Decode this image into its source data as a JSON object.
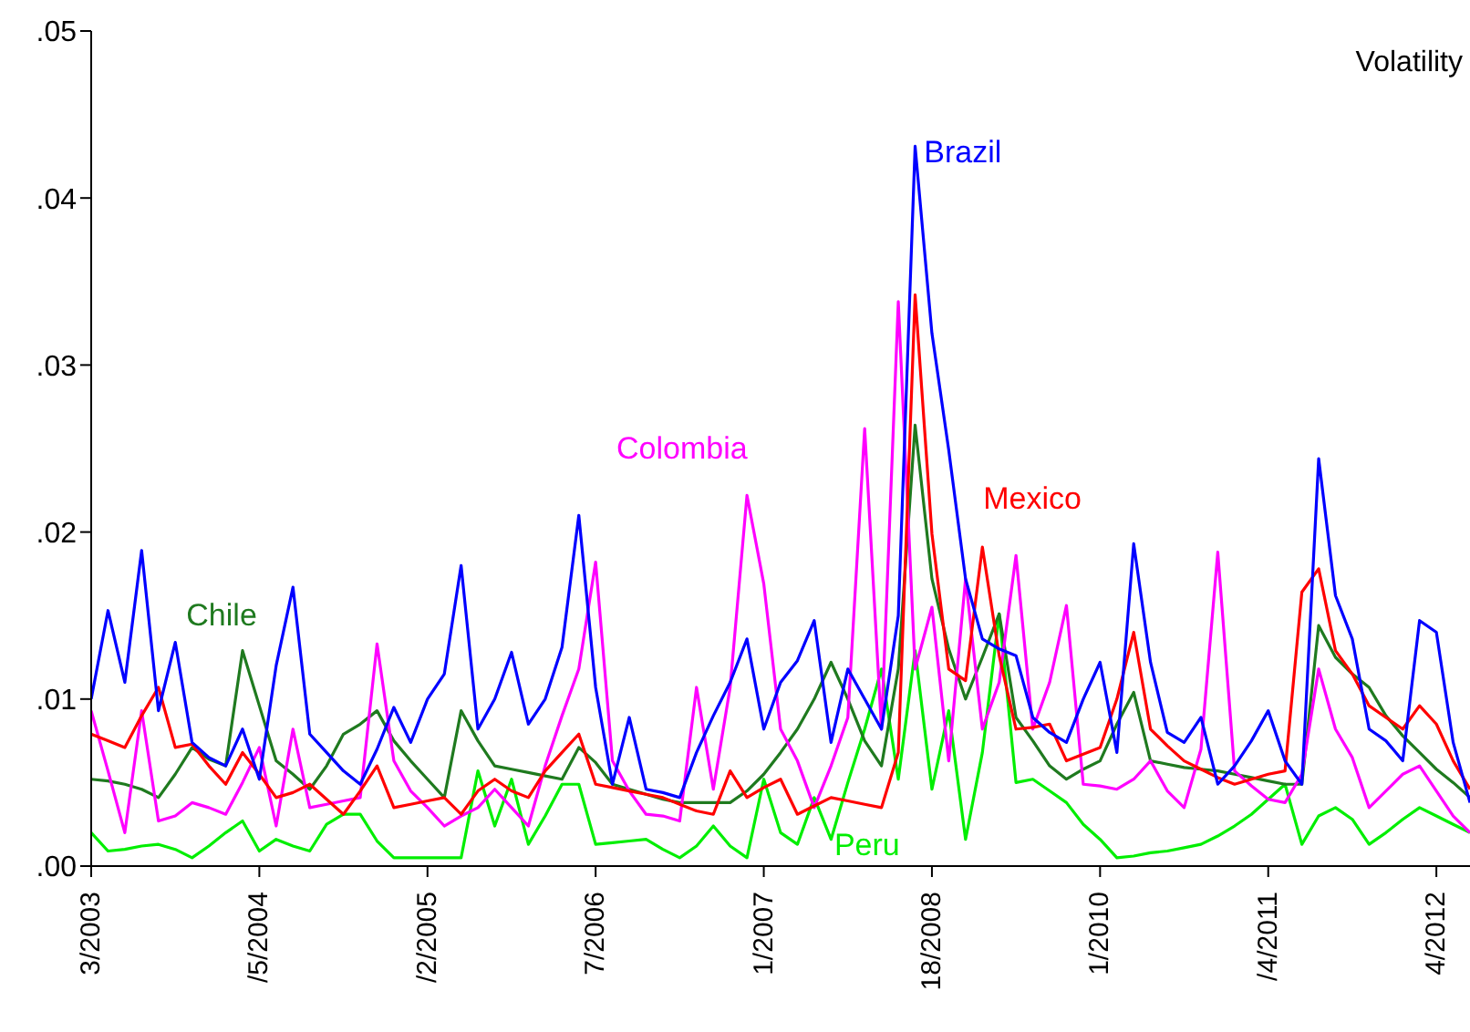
{
  "chart_data": {
    "type": "line",
    "annotations": [
      "Volatility"
    ],
    "categories": [
      "3/2003",
      null,
      null,
      null,
      null,
      null,
      null,
      null,
      null,
      null,
      "/5/2004",
      null,
      null,
      null,
      null,
      null,
      null,
      null,
      null,
      null,
      "/2/2005",
      null,
      null,
      null,
      null,
      null,
      null,
      null,
      null,
      null,
      "7/2006",
      null,
      null,
      null,
      null,
      null,
      null,
      null,
      null,
      null,
      "1/2007",
      null,
      null,
      null,
      null,
      null,
      null,
      null,
      null,
      null,
      "18/2008",
      null,
      null,
      null,
      null,
      null,
      null,
      null,
      null,
      null,
      "1/2010",
      null,
      null,
      null,
      null,
      null,
      null,
      null,
      null,
      null,
      "/4/2011",
      null,
      null,
      null,
      null,
      null,
      null,
      null,
      null,
      null,
      "4/2012",
      null,
      null
    ],
    "ylim": [
      0,
      0.05
    ],
    "yticks": [
      {
        "value": 0,
        "label": ".00"
      },
      {
        "value": 0.01,
        "label": ".01"
      },
      {
        "value": 0.02,
        "label": ".02"
      },
      {
        "value": 0.03,
        "label": ".03"
      },
      {
        "value": 0.04,
        "label": ".04"
      },
      {
        "value": 0.05,
        "label": ".05"
      }
    ],
    "grid": false,
    "legend": false,
    "marker": "none",
    "line_style": "solid",
    "series": [
      {
        "name": "Peru",
        "color": "#00ee00",
        "values": [
          0.002,
          0.0009,
          0.001,
          0.0012,
          0.0013,
          0.001,
          0.0005,
          0.0012,
          0.002,
          0.0027,
          0.0009,
          0.0016,
          0.0012,
          0.0009,
          0.0025,
          0.0031,
          0.0031,
          0.0015,
          0.0005,
          0.0005,
          0.0005,
          0.0005,
          0.0005,
          0.0057,
          0.0024,
          0.0052,
          0.0013,
          0.003,
          0.0049,
          0.0049,
          0.0013,
          0.0014,
          0.0015,
          0.0016,
          0.001,
          0.0005,
          0.0012,
          0.0024,
          0.0012,
          0.0005,
          0.0052,
          0.002,
          0.0013,
          0.0041,
          0.0016,
          0.005,
          0.0082,
          0.0118,
          0.0052,
          0.0129,
          0.0046,
          0.0093,
          0.0016,
          0.0068,
          0.0151,
          0.005,
          0.0052,
          0.0045,
          0.0038,
          0.0025,
          0.0016,
          0.0005,
          0.0006,
          0.0008,
          0.0009,
          0.0011,
          0.0013,
          0.0018,
          0.0024,
          0.0031,
          0.004,
          0.0049,
          0.0013,
          0.003,
          0.0035,
          0.0028,
          0.0013,
          0.002,
          0.0028,
          0.0035,
          0.003,
          0.0025,
          0.002
        ]
      },
      {
        "name": "Chile",
        "color": "#1f7a1f",
        "values": [
          0.0052,
          0.0051,
          0.0049,
          0.0046,
          0.0041,
          0.0055,
          0.0071,
          0.0064,
          0.006,
          0.0129,
          0.0096,
          0.0063,
          0.0055,
          0.0046,
          0.006,
          0.0079,
          0.0085,
          0.0093,
          0.0075,
          0.0063,
          0.0052,
          0.0041,
          0.0093,
          0.0075,
          0.006,
          0.0058,
          0.0056,
          0.0054,
          0.0052,
          0.0071,
          0.0062,
          0.0049,
          0.0046,
          0.0043,
          0.004,
          0.0038,
          0.0038,
          0.0038,
          0.0038,
          0.0045,
          0.0055,
          0.0068,
          0.0082,
          0.01,
          0.0122,
          0.01,
          0.0075,
          0.006,
          0.0118,
          0.0264,
          0.0172,
          0.013,
          0.01,
          0.0125,
          0.0151,
          0.0089,
          0.0075,
          0.006,
          0.0052,
          0.0058,
          0.0063,
          0.0085,
          0.0104,
          0.0063,
          0.0061,
          0.0059,
          0.0058,
          0.0057,
          0.0055,
          0.0053,
          0.0051,
          0.0049,
          0.0049,
          0.0144,
          0.0125,
          0.0115,
          0.0107,
          0.009,
          0.0078,
          0.0068,
          0.0058,
          0.005,
          0.0041
        ]
      },
      {
        "name": "Colombia",
        "color": "#ff00ff",
        "values": [
          0.0093,
          0.0057,
          0.002,
          0.0093,
          0.0027,
          0.003,
          0.0038,
          0.0035,
          0.0031,
          0.005,
          0.0071,
          0.0024,
          0.0082,
          0.0035,
          0.0037,
          0.0039,
          0.0041,
          0.0133,
          0.0063,
          0.0045,
          0.0035,
          0.0024,
          0.003,
          0.0035,
          0.0046,
          0.0035,
          0.0024,
          0.006,
          0.009,
          0.0118,
          0.0182,
          0.0063,
          0.0045,
          0.0031,
          0.003,
          0.0027,
          0.0107,
          0.0046,
          0.0107,
          0.0222,
          0.0169,
          0.0082,
          0.0063,
          0.0035,
          0.006,
          0.0089,
          0.0262,
          0.0082,
          0.0338,
          0.0118,
          0.0155,
          0.0063,
          0.0172,
          0.0082,
          0.011,
          0.0186,
          0.0082,
          0.011,
          0.0156,
          0.0049,
          0.0048,
          0.0046,
          0.0052,
          0.0063,
          0.0045,
          0.0035,
          0.007,
          0.0188,
          0.0057,
          0.0048,
          0.004,
          0.0038,
          0.0055,
          0.0118,
          0.0082,
          0.0065,
          0.0035,
          0.0045,
          0.0055,
          0.006,
          0.0045,
          0.003,
          0.002
        ]
      },
      {
        "name": "Mexico",
        "color": "#ff0000",
        "values": [
          0.0079,
          0.0075,
          0.0071,
          0.009,
          0.0107,
          0.0071,
          0.0073,
          0.006,
          0.0049,
          0.0068,
          0.0055,
          0.0041,
          0.0044,
          0.0049,
          0.004,
          0.0031,
          0.0045,
          0.006,
          0.0035,
          0.0037,
          0.0039,
          0.0041,
          0.0031,
          0.0045,
          0.0052,
          0.0045,
          0.0041,
          0.0057,
          0.0068,
          0.0079,
          0.0049,
          0.0047,
          0.0045,
          0.0043,
          0.0041,
          0.0037,
          0.0033,
          0.0031,
          0.0057,
          0.0041,
          0.0047,
          0.0052,
          0.0031,
          0.0036,
          0.0041,
          0.0039,
          0.0037,
          0.0035,
          0.0068,
          0.0342,
          0.0199,
          0.0118,
          0.0111,
          0.0191,
          0.0126,
          0.0082,
          0.0083,
          0.0085,
          0.0063,
          0.0067,
          0.0071,
          0.01,
          0.014,
          0.0082,
          0.0072,
          0.0063,
          0.0058,
          0.0053,
          0.0049,
          0.0052,
          0.0055,
          0.0057,
          0.0164,
          0.0178,
          0.0129,
          0.0115,
          0.0096,
          0.0089,
          0.0082,
          0.0096,
          0.0085,
          0.0063,
          0.0046
        ]
      },
      {
        "name": "Brazil",
        "color": "#0000ff",
        "values": [
          0.01,
          0.0153,
          0.011,
          0.0189,
          0.0093,
          0.0134,
          0.0074,
          0.0065,
          0.006,
          0.0082,
          0.0052,
          0.012,
          0.0167,
          0.0079,
          0.0068,
          0.0057,
          0.0049,
          0.007,
          0.0095,
          0.0074,
          0.01,
          0.0115,
          0.018,
          0.0082,
          0.01,
          0.0128,
          0.0085,
          0.01,
          0.0131,
          0.021,
          0.0107,
          0.0049,
          0.0089,
          0.0046,
          0.0044,
          0.0041,
          0.0068,
          0.009,
          0.011,
          0.0136,
          0.0082,
          0.011,
          0.0123,
          0.0147,
          0.0074,
          0.0118,
          0.01,
          0.0082,
          0.015,
          0.0431,
          0.0319,
          0.0249,
          0.0172,
          0.0136,
          0.013,
          0.0126,
          0.0089,
          0.008,
          0.0074,
          0.01,
          0.0122,
          0.0068,
          0.0193,
          0.0122,
          0.008,
          0.0074,
          0.0089,
          0.0049,
          0.006,
          0.0075,
          0.0093,
          0.0063,
          0.0049,
          0.0244,
          0.0162,
          0.0136,
          0.0082,
          0.0075,
          0.0063,
          0.0147,
          0.014,
          0.0074,
          0.0038
        ]
      }
    ]
  }
}
